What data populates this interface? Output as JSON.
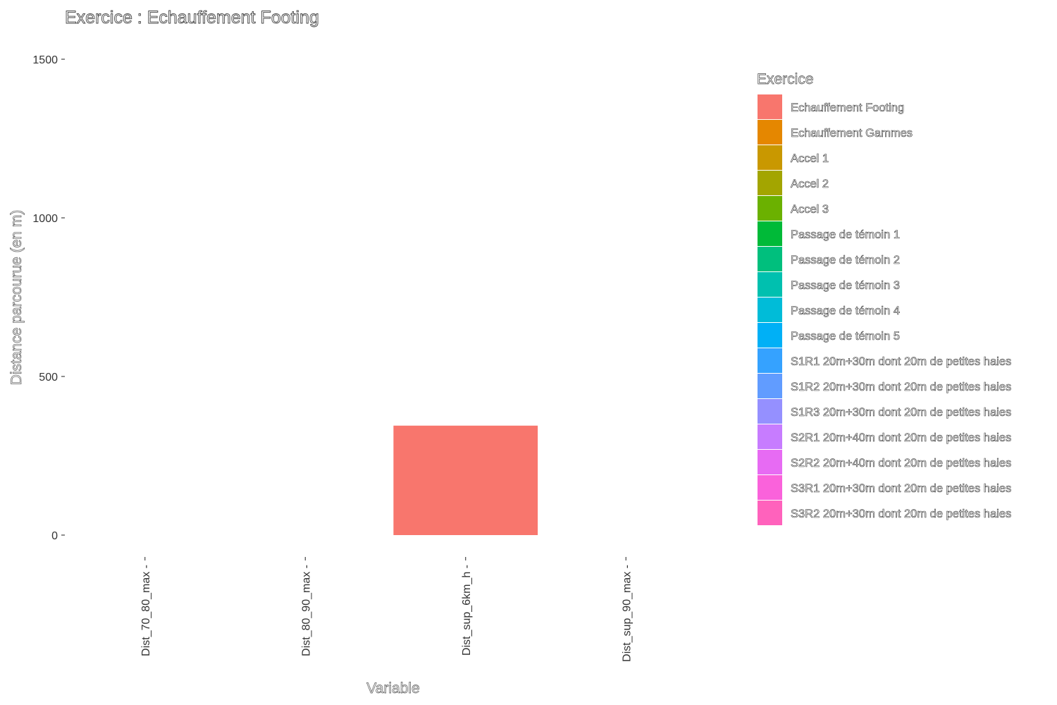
{
  "chart_data": {
    "type": "bar",
    "title": "Exercice : Echauffement Footing",
    "xlabel": "Variable",
    "ylabel": "Distance parcourue (en m)",
    "categories": [
      "Dist_70_80_max",
      "Dist_80_90_max",
      "Dist_sup_6km_h",
      "Dist_sup_90_max"
    ],
    "ylim": [
      -60,
      1560
    ],
    "yticks": [
      0,
      500,
      1000,
      1500
    ],
    "grid": false,
    "legend_placement": "right",
    "legend_title": "Exercice",
    "series": [
      {
        "name": "Echauffement Footing",
        "color": "#F8766D",
        "values": [
          0,
          0,
          345,
          0
        ]
      }
    ],
    "legend_entries": [
      {
        "label": "Echauffement Footing",
        "color": "#F8766D"
      },
      {
        "label": "Echauffement Gammes",
        "color": "#E58700"
      },
      {
        "label": "Accel 1",
        "color": "#C99800"
      },
      {
        "label": "Accel 2",
        "color": "#A3A500"
      },
      {
        "label": "Accel 3",
        "color": "#6BB100"
      },
      {
        "label": "Passage de témoin 1",
        "color": "#00BA38"
      },
      {
        "label": "Passage de témoin 2",
        "color": "#00BF7D"
      },
      {
        "label": "Passage de témoin 3",
        "color": "#00C0AF"
      },
      {
        "label": "Passage de témoin 4",
        "color": "#00BCD8"
      },
      {
        "label": "Passage de témoin 5",
        "color": "#00B0F6"
      },
      {
        "label": "S1R1 20m+30m dont 20m de petites haies",
        "color": "#35A2FF"
      },
      {
        "label": "S1R2 20m+30m dont 20m de petites haies",
        "color": "#619CFF"
      },
      {
        "label": "S1R3 20m+30m dont 20m de petites haies",
        "color": "#9590FF"
      },
      {
        "label": "S2R1 20m+40m dont 20m de petites haies",
        "color": "#C77CFF"
      },
      {
        "label": "S2R2 20m+40m dont 20m de petites haies",
        "color": "#E76BF3"
      },
      {
        "label": "S3R1 20m+30m dont 20m de petites haies",
        "color": "#FA62DB"
      },
      {
        "label": "S3R2 20m+30m dont 20m de petites haies",
        "color": "#FF62BC"
      }
    ]
  }
}
